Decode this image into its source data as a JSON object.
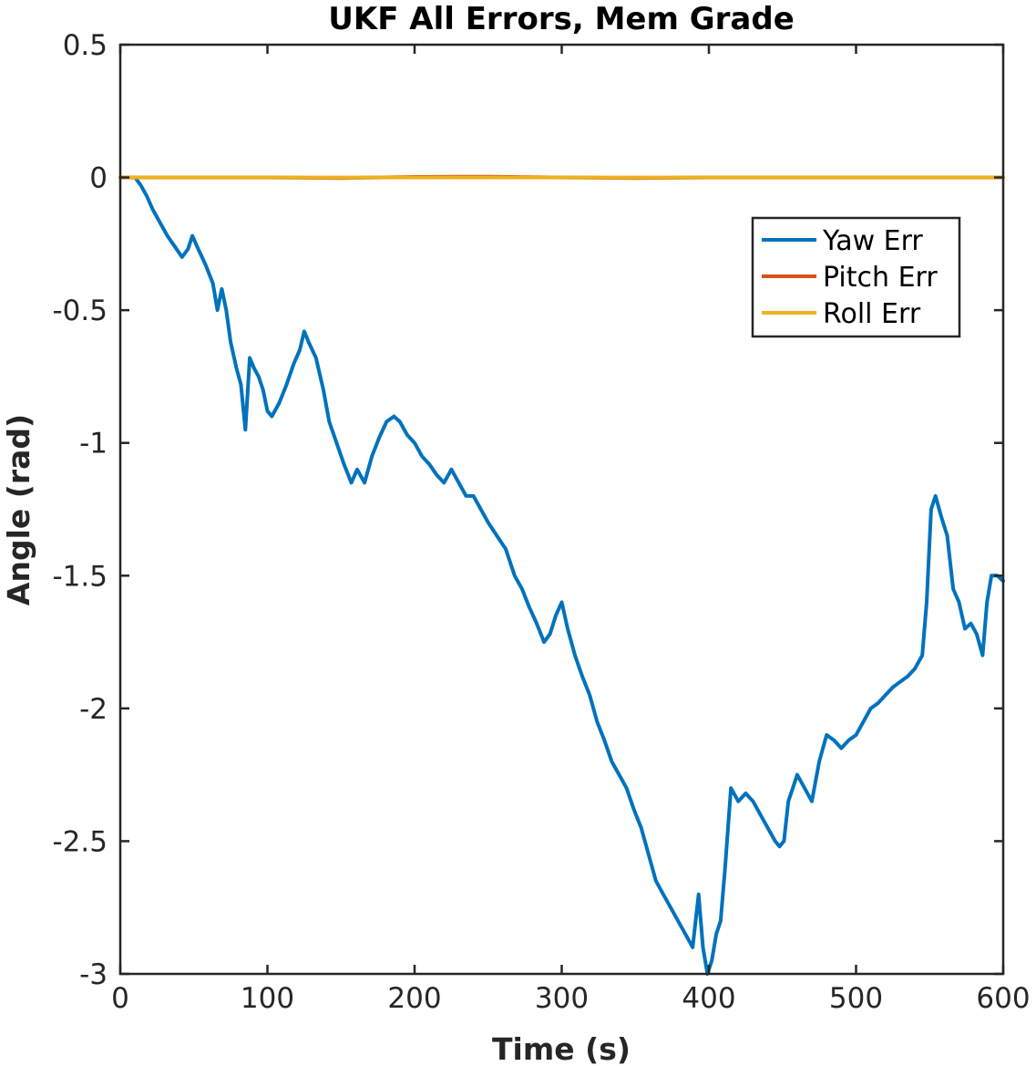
{
  "chart_data": {
    "type": "line",
    "title": "UKF All Errors, Mem Grade",
    "xlabel": "Time (s)",
    "ylabel": "Angle (rad)",
    "xlim": [
      0,
      600
    ],
    "ylim": [
      -3,
      0.5
    ],
    "xticks": [
      0,
      100,
      200,
      300,
      400,
      500,
      600
    ],
    "yticks": [
      0.5,
      0,
      -0.5,
      -1,
      -1.5,
      -2,
      -2.5,
      -3
    ],
    "xtick_labels": [
      "0",
      "100",
      "200",
      "300",
      "400",
      "500",
      "600"
    ],
    "ytick_labels": [
      "0.5",
      "0",
      "-0.5",
      "-1",
      "-1.5",
      "-2",
      "-2.5",
      "-3"
    ],
    "grid": false,
    "legend_position": "top-right",
    "series": [
      {
        "name": "Yaw Err",
        "color": "#0072BD",
        "x": [
          0,
          10,
          14,
          18,
          22,
          27,
          32,
          37,
          42,
          46,
          49,
          53,
          58,
          63,
          66,
          69,
          72,
          75,
          79,
          82,
          85,
          88,
          91,
          94,
          97,
          100,
          103,
          108,
          113,
          118,
          122,
          125,
          128,
          133,
          138,
          142,
          147,
          152,
          157,
          161,
          166,
          171,
          176,
          181,
          186,
          190,
          195,
          200,
          205,
          210,
          215,
          220,
          225,
          230,
          235,
          240,
          245,
          250,
          256,
          262,
          268,
          273,
          278,
          283,
          288,
          292,
          296,
          300,
          304,
          309,
          314,
          319,
          324,
          329,
          334,
          339,
          344,
          349,
          354,
          359,
          364,
          369,
          374,
          379,
          384,
          389,
          393,
          396,
          399,
          402,
          405,
          408,
          411,
          415,
          420,
          425,
          430,
          435,
          440,
          445,
          448,
          451,
          454,
          457,
          460,
          465,
          470,
          475,
          480,
          485,
          490,
          495,
          500,
          505,
          510,
          515,
          520,
          525,
          530,
          535,
          540,
          545,
          548,
          551,
          554,
          558,
          562,
          566,
          570,
          574,
          578,
          582,
          586,
          589,
          592,
          596,
          600
        ],
        "y": [
          0,
          0,
          -0.03,
          -0.07,
          -0.12,
          -0.17,
          -0.22,
          -0.26,
          -0.3,
          -0.27,
          -0.22,
          -0.27,
          -0.33,
          -0.4,
          -0.5,
          -0.42,
          -0.5,
          -0.62,
          -0.72,
          -0.78,
          -0.95,
          -0.68,
          -0.72,
          -0.75,
          -0.8,
          -0.88,
          -0.9,
          -0.85,
          -0.78,
          -0.7,
          -0.65,
          -0.58,
          -0.62,
          -0.68,
          -0.8,
          -0.92,
          -1.0,
          -1.08,
          -1.15,
          -1.1,
          -1.15,
          -1.05,
          -0.98,
          -0.92,
          -0.9,
          -0.92,
          -0.97,
          -1.0,
          -1.05,
          -1.08,
          -1.12,
          -1.15,
          -1.1,
          -1.15,
          -1.2,
          -1.2,
          -1.25,
          -1.3,
          -1.35,
          -1.4,
          -1.5,
          -1.55,
          -1.62,
          -1.68,
          -1.75,
          -1.72,
          -1.65,
          -1.6,
          -1.7,
          -1.8,
          -1.88,
          -1.95,
          -2.05,
          -2.12,
          -2.2,
          -2.25,
          -2.3,
          -2.38,
          -2.45,
          -2.55,
          -2.65,
          -2.7,
          -2.75,
          -2.8,
          -2.85,
          -2.9,
          -2.7,
          -2.9,
          -3.0,
          -2.95,
          -2.85,
          -2.8,
          -2.6,
          -2.3,
          -2.35,
          -2.32,
          -2.35,
          -2.4,
          -2.45,
          -2.5,
          -2.52,
          -2.5,
          -2.35,
          -2.3,
          -2.25,
          -2.3,
          -2.35,
          -2.2,
          -2.1,
          -2.12,
          -2.15,
          -2.12,
          -2.1,
          -2.05,
          -2.0,
          -1.98,
          -1.95,
          -1.92,
          -1.9,
          -1.88,
          -1.85,
          -1.8,
          -1.6,
          -1.25,
          -1.2,
          -1.28,
          -1.35,
          -1.55,
          -1.6,
          -1.7,
          -1.68,
          -1.72,
          -1.8,
          -1.6,
          -1.5,
          -1.5,
          -1.52
        ]
      },
      {
        "name": "Pitch Err",
        "color": "#D95319",
        "x": [
          0,
          50,
          100,
          150,
          200,
          250,
          300,
          350,
          400,
          450,
          500,
          550,
          600
        ],
        "y": [
          0,
          0,
          0,
          -0.002,
          0.002,
          0.003,
          0,
          -0.002,
          0,
          0,
          0,
          0,
          0
        ]
      },
      {
        "name": "Roll Err",
        "color": "#EDB120",
        "x": [
          0,
          50,
          100,
          150,
          200,
          250,
          300,
          350,
          400,
          450,
          500,
          550,
          600
        ],
        "y": [
          0,
          0,
          0,
          0,
          0,
          0,
          0,
          0,
          0,
          0,
          0,
          0,
          0
        ]
      }
    ]
  }
}
